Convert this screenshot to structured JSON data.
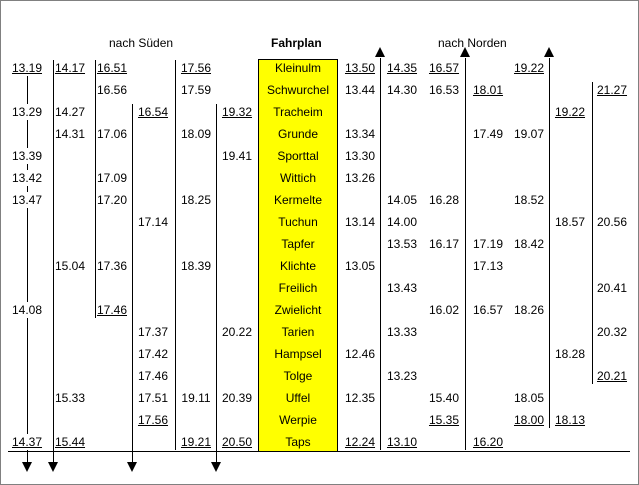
{
  "headers": {
    "south": "nach Süden",
    "title": "Fahrplan",
    "north": "nach Norden"
  },
  "stations": [
    "Kleinulm",
    "Schwurchel",
    "Tracheim",
    "Grunde",
    "Sporttal",
    "Wittich",
    "Kermelte",
    "Tuchun",
    "Tapfer",
    "Klichte",
    "Freilich",
    "Zwielicht",
    "Tarien",
    "Hampsel",
    "Tolge",
    "Uffel",
    "Werpie",
    "Taps"
  ],
  "southbound": [
    {
      "times": [
        [
          "13.19",
          0,
          true
        ],
        [
          "13.29",
          2
        ],
        [
          "13.39",
          4
        ],
        [
          "13.42",
          5
        ],
        [
          "13.47",
          6
        ],
        [
          "14.08",
          11
        ],
        [
          "14.37",
          17,
          true
        ]
      ]
    },
    {
      "times": [
        [
          "14.17",
          0,
          true
        ],
        [
          "14.27",
          2
        ],
        [
          "14.31",
          3
        ],
        [
          "15.04",
          9
        ],
        [
          "15.33",
          15
        ],
        [
          "15.44",
          17,
          true
        ]
      ]
    },
    {
      "times": [
        [
          "16.51",
          0,
          true
        ],
        [
          "16.56",
          1
        ],
        [
          "17.06",
          3
        ],
        [
          "17.09",
          5
        ],
        [
          "17.20",
          6
        ],
        [
          "17.36",
          9
        ],
        [
          "17.46",
          11,
          true
        ]
      ]
    },
    {
      "times": [
        [
          "16.54",
          2,
          true
        ],
        [
          "17.14",
          7
        ],
        [
          "17.37",
          12
        ],
        [
          "17.42",
          13
        ],
        [
          "17.46",
          14
        ],
        [
          "17.51",
          15
        ],
        [
          "17.56",
          16,
          true
        ]
      ]
    },
    {
      "times": [
        [
          "17.56",
          0,
          true
        ],
        [
          "17.59",
          1
        ],
        [
          "18.09",
          3
        ],
        [
          "18.25",
          6
        ],
        [
          "18.39",
          9
        ],
        [
          "19.11",
          15
        ],
        [
          "19.21",
          17,
          true
        ]
      ]
    },
    {
      "times": [
        [
          "19.32",
          2,
          true
        ],
        [
          "19.41",
          4
        ],
        [
          "20.22",
          12
        ],
        [
          "20.39",
          15
        ],
        [
          "20.50",
          17,
          true
        ]
      ]
    }
  ],
  "northbound": [
    {
      "times": [
        [
          "13.50",
          0,
          true
        ],
        [
          "13.44",
          1
        ],
        [
          "13.34",
          3
        ],
        [
          "13.30",
          4
        ],
        [
          "13.26",
          5
        ],
        [
          "13.14",
          7
        ],
        [
          "13.05",
          9
        ],
        [
          "12.46",
          13
        ],
        [
          "12.35",
          15
        ],
        [
          "12.24",
          17,
          true
        ]
      ]
    },
    {
      "times": [
        [
          "14.35",
          0,
          true
        ],
        [
          "14.30",
          1
        ],
        [
          "14.05",
          6
        ],
        [
          "14.00",
          7
        ],
        [
          "13.53",
          8
        ],
        [
          "13.43",
          10
        ],
        [
          "13.33",
          12
        ],
        [
          "13.23",
          14
        ],
        [
          "13.10",
          17,
          true
        ]
      ]
    },
    {
      "times": [
        [
          "16.57",
          0,
          true
        ],
        [
          "16.53",
          1
        ],
        [
          "16.28",
          6
        ],
        [
          "16.17",
          8
        ],
        [
          "16.02",
          11
        ],
        [
          "15.40",
          15
        ],
        [
          "15.35",
          16,
          true
        ]
      ]
    },
    {
      "times": [
        [
          "18.01",
          1,
          true
        ],
        [
          "17.49",
          3
        ],
        [
          "17.19",
          8
        ],
        [
          "17.13",
          9
        ],
        [
          "16.57",
          11
        ],
        [
          "16.20",
          17,
          true
        ]
      ]
    },
    {
      "times": [
        [
          "19.22",
          0,
          true
        ],
        [
          "19.07",
          3
        ],
        [
          "18.52",
          6
        ],
        [
          "18.42",
          8
        ],
        [
          "18.26",
          11
        ],
        [
          "18.05",
          15
        ],
        [
          "18.00",
          16,
          true
        ]
      ]
    },
    {
      "times": [
        [
          "19.22",
          2,
          true
        ],
        [
          "18.57",
          7
        ],
        [
          "18.28",
          13
        ],
        [
          "18.13",
          16,
          true
        ]
      ]
    },
    {
      "times": [
        [
          "21.27",
          1,
          true
        ],
        [
          "20.56",
          7
        ],
        [
          "20.41",
          10
        ],
        [
          "20.32",
          12
        ],
        [
          "20.21",
          14,
          true
        ]
      ]
    }
  ],
  "colors": {
    "station_bg": "#ffff00",
    "frame": "#808080"
  }
}
